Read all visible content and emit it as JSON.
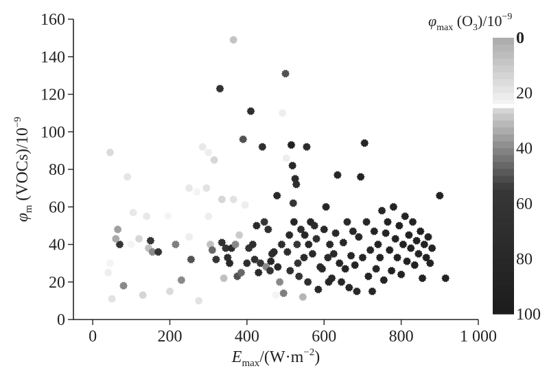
{
  "chart_data": {
    "type": "scatter",
    "xlabel": {
      "main": "E",
      "sub": "max",
      "rest": "/(W·m",
      "sup": "−2",
      "close": ")"
    },
    "ylabel": {
      "main": "φ",
      "sub": "m",
      "rest": " (VOCs)/10",
      "sup": "−9"
    },
    "xlim": [
      -50,
      1000
    ],
    "ylim": [
      0,
      160
    ],
    "xticks": [
      0,
      200,
      400,
      600,
      800,
      1000
    ],
    "xtick_labels": [
      "0",
      "200",
      "400",
      "600",
      "800",
      "1 000"
    ],
    "yticks": [
      0,
      20,
      40,
      60,
      80,
      100,
      120,
      140,
      160
    ],
    "ytick_labels": [
      "0",
      "20",
      "40",
      "60",
      "80",
      "100",
      "120",
      "140",
      "160"
    ],
    "grid": false,
    "colorbar": {
      "title": {
        "main": "φ",
        "sub": "max",
        "rest": " (O",
        "sub2": "3",
        "close": ")/10",
        "sup": "−9"
      },
      "range": [
        0,
        100
      ],
      "ticks": [
        0,
        20,
        40,
        60,
        80,
        100
      ],
      "tick_labels": [
        "0",
        "20",
        "40",
        "60",
        "80",
        "100"
      ],
      "colors": {
        "light": "#f2f2f2",
        "gray": "#a9a9a9",
        "dark": "#1e1e1e"
      }
    },
    "points": [
      [
        45,
        89,
        16
      ],
      [
        90,
        76,
        19
      ],
      [
        40,
        25,
        22
      ],
      [
        50,
        11,
        18
      ],
      [
        45,
        30,
        24
      ],
      [
        80,
        18,
        40
      ],
      [
        65,
        48,
        36
      ],
      [
        70,
        40,
        58
      ],
      [
        60,
        43,
        34
      ],
      [
        105,
        57,
        20
      ],
      [
        100,
        40,
        24
      ],
      [
        120,
        43,
        26
      ],
      [
        130,
        13,
        14
      ],
      [
        140,
        55,
        20
      ],
      [
        145,
        38,
        30
      ],
      [
        150,
        42,
        56
      ],
      [
        155,
        36,
        40
      ],
      [
        170,
        36,
        62
      ],
      [
        195,
        55,
        24
      ],
      [
        200,
        15,
        16
      ],
      [
        215,
        40,
        42
      ],
      [
        230,
        21,
        40
      ],
      [
        250,
        44,
        22
      ],
      [
        250,
        70,
        20
      ],
      [
        255,
        32,
        50
      ],
      [
        270,
        68,
        24
      ],
      [
        275,
        10,
        18
      ],
      [
        285,
        92,
        20
      ],
      [
        300,
        89,
        22
      ],
      [
        295,
        70,
        18
      ],
      [
        300,
        55,
        22
      ],
      [
        305,
        40,
        30
      ],
      [
        315,
        85,
        26
      ],
      [
        310,
        37,
        46
      ],
      [
        320,
        32,
        60
      ],
      [
        335,
        64,
        26
      ],
      [
        335,
        41,
        64
      ],
      [
        330,
        123,
        62
      ],
      [
        340,
        22,
        30
      ],
      [
        345,
        38,
        60
      ],
      [
        350,
        33,
        72
      ],
      [
        355,
        30,
        78
      ],
      [
        360,
        38,
        74
      ],
      [
        365,
        149,
        8
      ],
      [
        365,
        64,
        18
      ],
      [
        370,
        40,
        40
      ],
      [
        375,
        23,
        50
      ],
      [
        380,
        45,
        28
      ],
      [
        385,
        25,
        46
      ],
      [
        390,
        96,
        50
      ],
      [
        395,
        61,
        22
      ],
      [
        400,
        30,
        72
      ],
      [
        405,
        38,
        60
      ],
      [
        410,
        111,
        70
      ],
      [
        415,
        40,
        68
      ],
      [
        420,
        32,
        66
      ],
      [
        425,
        50,
        78
      ],
      [
        430,
        25,
        76
      ],
      [
        435,
        30,
        58
      ],
      [
        440,
        92,
        68
      ],
      [
        445,
        52,
        60
      ],
      [
        450,
        28,
        40
      ],
      [
        455,
        48,
        66
      ],
      [
        460,
        26,
        60
      ],
      [
        462,
        31,
        82
      ],
      [
        465,
        35,
        68
      ],
      [
        470,
        36,
        76
      ],
      [
        475,
        13,
        24
      ],
      [
        478,
        66,
        78
      ],
      [
        480,
        28,
        82
      ],
      [
        485,
        20,
        40
      ],
      [
        490,
        40,
        70
      ],
      [
        492,
        110,
        22
      ],
      [
        495,
        14,
        42
      ],
      [
        500,
        131,
        50
      ],
      [
        502,
        86,
        22
      ],
      [
        505,
        36,
        70
      ],
      [
        510,
        45,
        78
      ],
      [
        512,
        26,
        66
      ],
      [
        515,
        93,
        90
      ],
      [
        518,
        82,
        78
      ],
      [
        520,
        62,
        60
      ],
      [
        522,
        52,
        84
      ],
      [
        525,
        75,
        74
      ],
      [
        528,
        72,
        68
      ],
      [
        530,
        40,
        58
      ],
      [
        532,
        30,
        62
      ],
      [
        535,
        23,
        60
      ],
      [
        540,
        48,
        70
      ],
      [
        545,
        12,
        32
      ],
      [
        548,
        33,
        76
      ],
      [
        550,
        45,
        80
      ],
      [
        555,
        92,
        74
      ],
      [
        558,
        20,
        70
      ],
      [
        560,
        40,
        80
      ],
      [
        565,
        52,
        84
      ],
      [
        570,
        35,
        76
      ],
      [
        575,
        50,
        74
      ],
      [
        580,
        43,
        66
      ],
      [
        585,
        16,
        80
      ],
      [
        590,
        28,
        76
      ],
      [
        595,
        27,
        78
      ],
      [
        600,
        48,
        80
      ],
      [
        605,
        60,
        84
      ],
      [
        610,
        33,
        76
      ],
      [
        612,
        20,
        84
      ],
      [
        615,
        40,
        82
      ],
      [
        620,
        22,
        80
      ],
      [
        625,
        35,
        76
      ],
      [
        630,
        46,
        78
      ],
      [
        635,
        77,
        82
      ],
      [
        640,
        30,
        84
      ],
      [
        645,
        20,
        80
      ],
      [
        650,
        41,
        82
      ],
      [
        655,
        27,
        86
      ],
      [
        660,
        52,
        78
      ],
      [
        665,
        17,
        82
      ],
      [
        670,
        34,
        84
      ],
      [
        675,
        47,
        80
      ],
      [
        680,
        29,
        86
      ],
      [
        685,
        15,
        78
      ],
      [
        690,
        44,
        82
      ],
      [
        695,
        76,
        86
      ],
      [
        700,
        33,
        80
      ],
      [
        705,
        94,
        82
      ],
      [
        710,
        52,
        84
      ],
      [
        715,
        23,
        86
      ],
      [
        720,
        37,
        80
      ],
      [
        725,
        15,
        84
      ],
      [
        730,
        47,
        86
      ],
      [
        735,
        27,
        84
      ],
      [
        740,
        40,
        88
      ],
      [
        745,
        33,
        86
      ],
      [
        750,
        58,
        84
      ],
      [
        755,
        21,
        88
      ],
      [
        760,
        46,
        86
      ],
      [
        765,
        52,
        90
      ],
      [
        770,
        37,
        88
      ],
      [
        775,
        26,
        90
      ],
      [
        780,
        60,
        88
      ],
      [
        785,
        43,
        86
      ],
      [
        790,
        33,
        90
      ],
      [
        795,
        50,
        92
      ],
      [
        800,
        24,
        88
      ],
      [
        805,
        40,
        90
      ],
      [
        810,
        55,
        86
      ],
      [
        815,
        31,
        88
      ],
      [
        820,
        45,
        92
      ],
      [
        825,
        38,
        90
      ],
      [
        830,
        52,
        88
      ],
      [
        835,
        29,
        92
      ],
      [
        840,
        42,
        90
      ],
      [
        845,
        35,
        88
      ],
      [
        850,
        47,
        92
      ],
      [
        855,
        22,
        88
      ],
      [
        860,
        40,
        90
      ],
      [
        865,
        33,
        92
      ],
      [
        870,
        44,
        88
      ],
      [
        875,
        30,
        90
      ],
      [
        880,
        38,
        86
      ],
      [
        900,
        66,
        90
      ],
      [
        915,
        22,
        88
      ]
    ]
  }
}
